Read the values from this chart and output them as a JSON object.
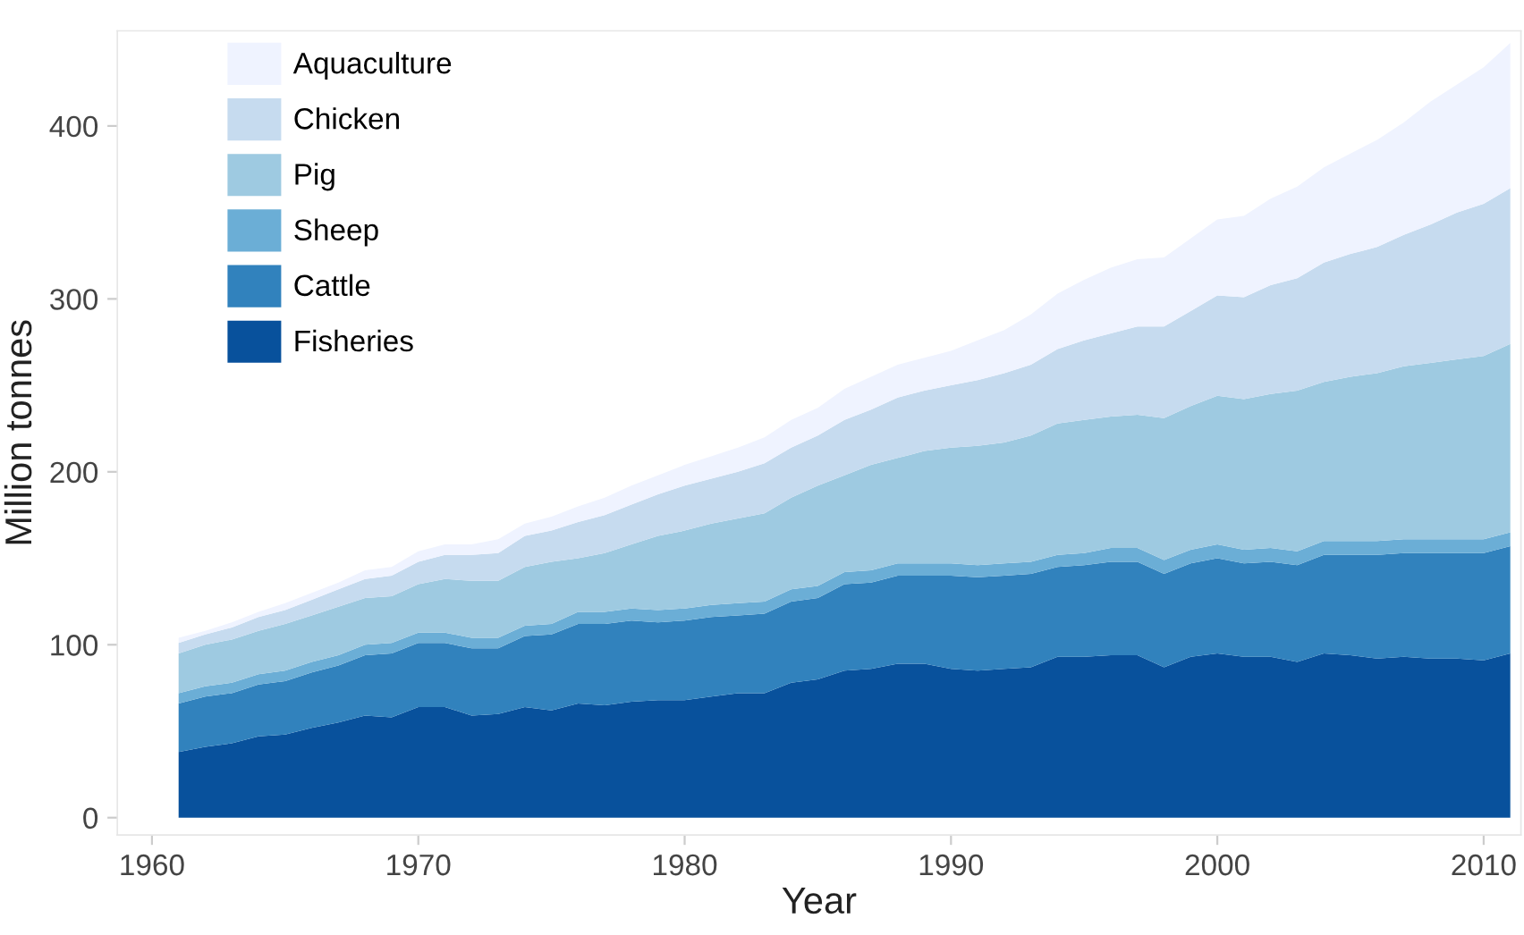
{
  "chart_data": {
    "type": "area",
    "stacked": true,
    "xlabel": "Year",
    "ylabel": "Million tonnes",
    "x": [
      1961,
      1962,
      1963,
      1964,
      1965,
      1966,
      1967,
      1968,
      1969,
      1970,
      1971,
      1972,
      1973,
      1974,
      1975,
      1976,
      1977,
      1978,
      1979,
      1980,
      1981,
      1982,
      1983,
      1984,
      1985,
      1986,
      1987,
      1988,
      1989,
      1990,
      1991,
      1992,
      1993,
      1994,
      1995,
      1996,
      1997,
      1998,
      1999,
      2000,
      2001,
      2002,
      2003,
      2004,
      2005,
      2006,
      2007,
      2008,
      2009,
      2010,
      2011
    ],
    "series": [
      {
        "name": "Fisheries",
        "color": "#08519c",
        "values": [
          38,
          41,
          43,
          47,
          48,
          52,
          55,
          59,
          58,
          64,
          64,
          59,
          60,
          64,
          62,
          66,
          65,
          67,
          68,
          68,
          70,
          72,
          72,
          78,
          80,
          85,
          86,
          89,
          89,
          86,
          85,
          86,
          87,
          93,
          93,
          94,
          94,
          87,
          93,
          95,
          93,
          93,
          90,
          95,
          94,
          92,
          93,
          92,
          92,
          91,
          95
        ]
      },
      {
        "name": "Cattle",
        "color": "#3182bd",
        "values": [
          28,
          29,
          29,
          30,
          31,
          32,
          33,
          35,
          37,
          37,
          37,
          39,
          38,
          41,
          44,
          46,
          47,
          47,
          45,
          46,
          46,
          45,
          46,
          47,
          47,
          50,
          50,
          51,
          51,
          54,
          54,
          54,
          54,
          52,
          53,
          54,
          54,
          54,
          54,
          55,
          54,
          55,
          56,
          57,
          58,
          60,
          60,
          61,
          61,
          62,
          62
        ]
      },
      {
        "name": "Sheep",
        "color": "#6baed6",
        "values": [
          6,
          6,
          6,
          6,
          6,
          6,
          6,
          6,
          6,
          6,
          6,
          6,
          6,
          6,
          6,
          7,
          7,
          7,
          7,
          7,
          7,
          7,
          7,
          7,
          7,
          7,
          7,
          7,
          7,
          7,
          7,
          7,
          7,
          7,
          7,
          8,
          8,
          8,
          8,
          8,
          8,
          8,
          8,
          8,
          8,
          8,
          8,
          8,
          8,
          8,
          8
        ]
      },
      {
        "name": "Pig",
        "color": "#9ecae1",
        "values": [
          23,
          24,
          25,
          25,
          27,
          27,
          28,
          27,
          27,
          28,
          31,
          33,
          33,
          34,
          36,
          31,
          34,
          37,
          43,
          45,
          47,
          49,
          51,
          53,
          58,
          56,
          61,
          61,
          65,
          67,
          69,
          70,
          73,
          76,
          77,
          76,
          77,
          82,
          83,
          86,
          87,
          89,
          93,
          92,
          95,
          97,
          100,
          102,
          104,
          106,
          109
        ]
      },
      {
        "name": "Chicken",
        "color": "#c6dbef",
        "values": [
          6,
          6,
          7,
          8,
          8,
          9,
          10,
          11,
          12,
          13,
          14,
          15,
          16,
          18,
          18,
          21,
          22,
          23,
          24,
          26,
          26,
          27,
          29,
          29,
          29,
          32,
          32,
          35,
          35,
          36,
          38,
          40,
          41,
          43,
          46,
          48,
          51,
          53,
          55,
          58,
          59,
          63,
          65,
          69,
          71,
          73,
          76,
          80,
          85,
          88,
          90
        ]
      },
      {
        "name": "Aquaculture",
        "color": "#eff3ff",
        "values": [
          3,
          2,
          3,
          3,
          4,
          4,
          4,
          5,
          5,
          6,
          6,
          6,
          8,
          7,
          8,
          9,
          10,
          11,
          11,
          12,
          13,
          14,
          15,
          16,
          16,
          18,
          19,
          19,
          19,
          20,
          23,
          25,
          29,
          32,
          35,
          38,
          39,
          40,
          42,
          44,
          47,
          50,
          53,
          55,
          58,
          62,
          65,
          71,
          74,
          79,
          84
        ]
      }
    ],
    "xlim": [
      1958.7,
      2011.4
    ],
    "ylim": [
      -10,
      455
    ],
    "xticks": [
      1960,
      1970,
      1980,
      1990,
      2000,
      2010
    ],
    "yticks": [
      0,
      100,
      200,
      300,
      400
    ],
    "grid": false,
    "legend": "top left"
  }
}
